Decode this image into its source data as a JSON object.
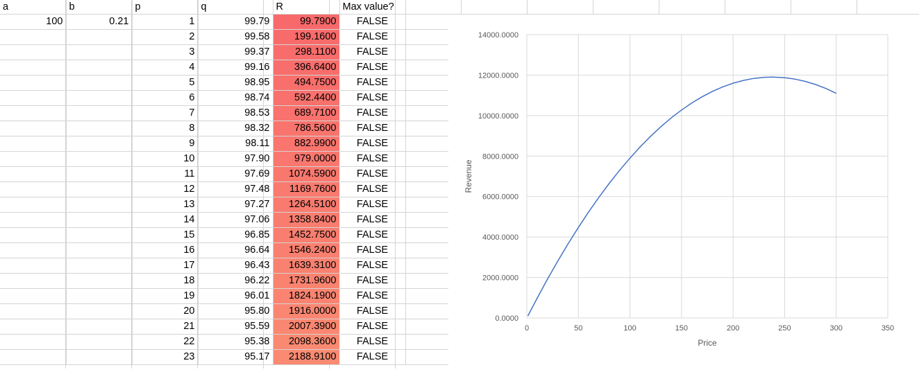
{
  "headers": [
    "a",
    "b",
    "p",
    "q",
    "R",
    "Max value?"
  ],
  "params": {
    "a": "100",
    "b": "0.21"
  },
  "rows": [
    {
      "p": "1",
      "q": "99.79",
      "r": "99.7900",
      "max": "FALSE"
    },
    {
      "p": "2",
      "q": "99.58",
      "r": "199.1600",
      "max": "FALSE"
    },
    {
      "p": "3",
      "q": "99.37",
      "r": "298.1100",
      "max": "FALSE"
    },
    {
      "p": "4",
      "q": "99.16",
      "r": "396.6400",
      "max": "FALSE"
    },
    {
      "p": "5",
      "q": "98.95",
      "r": "494.7500",
      "max": "FALSE"
    },
    {
      "p": "6",
      "q": "98.74",
      "r": "592.4400",
      "max": "FALSE"
    },
    {
      "p": "7",
      "q": "98.53",
      "r": "689.7100",
      "max": "FALSE"
    },
    {
      "p": "8",
      "q": "98.32",
      "r": "786.5600",
      "max": "FALSE"
    },
    {
      "p": "9",
      "q": "98.11",
      "r": "882.9900",
      "max": "FALSE"
    },
    {
      "p": "10",
      "q": "97.90",
      "r": "979.0000",
      "max": "FALSE"
    },
    {
      "p": "11",
      "q": "97.69",
      "r": "1074.5900",
      "max": "FALSE"
    },
    {
      "p": "12",
      "q": "97.48",
      "r": "1169.7600",
      "max": "FALSE"
    },
    {
      "p": "13",
      "q": "97.27",
      "r": "1264.5100",
      "max": "FALSE"
    },
    {
      "p": "14",
      "q": "97.06",
      "r": "1358.8400",
      "max": "FALSE"
    },
    {
      "p": "15",
      "q": "96.85",
      "r": "1452.7500",
      "max": "FALSE"
    },
    {
      "p": "16",
      "q": "96.64",
      "r": "1546.2400",
      "max": "FALSE"
    },
    {
      "p": "17",
      "q": "96.43",
      "r": "1639.3100",
      "max": "FALSE"
    },
    {
      "p": "18",
      "q": "96.22",
      "r": "1731.9600",
      "max": "FALSE"
    },
    {
      "p": "19",
      "q": "96.01",
      "r": "1824.1900",
      "max": "FALSE"
    },
    {
      "p": "20",
      "q": "95.80",
      "r": "1916.0000",
      "max": "FALSE"
    },
    {
      "p": "21",
      "q": "95.59",
      "r": "2007.3900",
      "max": "FALSE"
    },
    {
      "p": "22",
      "q": "95.38",
      "r": "2098.3600",
      "max": "FALSE"
    },
    {
      "p": "23",
      "q": "95.17",
      "r": "2188.9100",
      "max": "FALSE"
    }
  ],
  "colors": {
    "r_low": "#f8696b",
    "r_high": "#fa8a72",
    "line": "#4472c4"
  },
  "chart_data": {
    "type": "line",
    "title": "",
    "xlabel": "Price",
    "ylabel": "Revenue",
    "xlim": [
      0,
      350
    ],
    "ylim": [
      0,
      14000
    ],
    "xticks": [
      "0",
      "50",
      "100",
      "150",
      "200",
      "250",
      "300",
      "350"
    ],
    "yticks": [
      "0.0000",
      "2000.0000",
      "4000.0000",
      "6000.0000",
      "8000.0000",
      "10000.0000",
      "12000.0000",
      "14000.0000"
    ],
    "grid": true,
    "legend": "none",
    "series": [
      {
        "x": [
          1,
          10,
          20,
          30,
          40,
          50,
          60,
          70,
          80,
          90,
          100,
          110,
          120,
          130,
          140,
          150,
          160,
          170,
          180,
          190,
          200,
          210,
          220,
          230,
          238,
          250,
          260,
          270,
          280,
          290,
          300
        ],
        "values": [
          99.79,
          979,
          1916,
          2811,
          3664,
          4475,
          5244,
          5971,
          6656,
          7299,
          7900,
          8459,
          8976,
          9451,
          9884,
          10275,
          10624,
          10931,
          11196,
          11419,
          11600,
          11739,
          11836,
          11891,
          11905,
          11875,
          11804,
          11691,
          11536,
          11339,
          11100
        ]
      }
    ]
  }
}
